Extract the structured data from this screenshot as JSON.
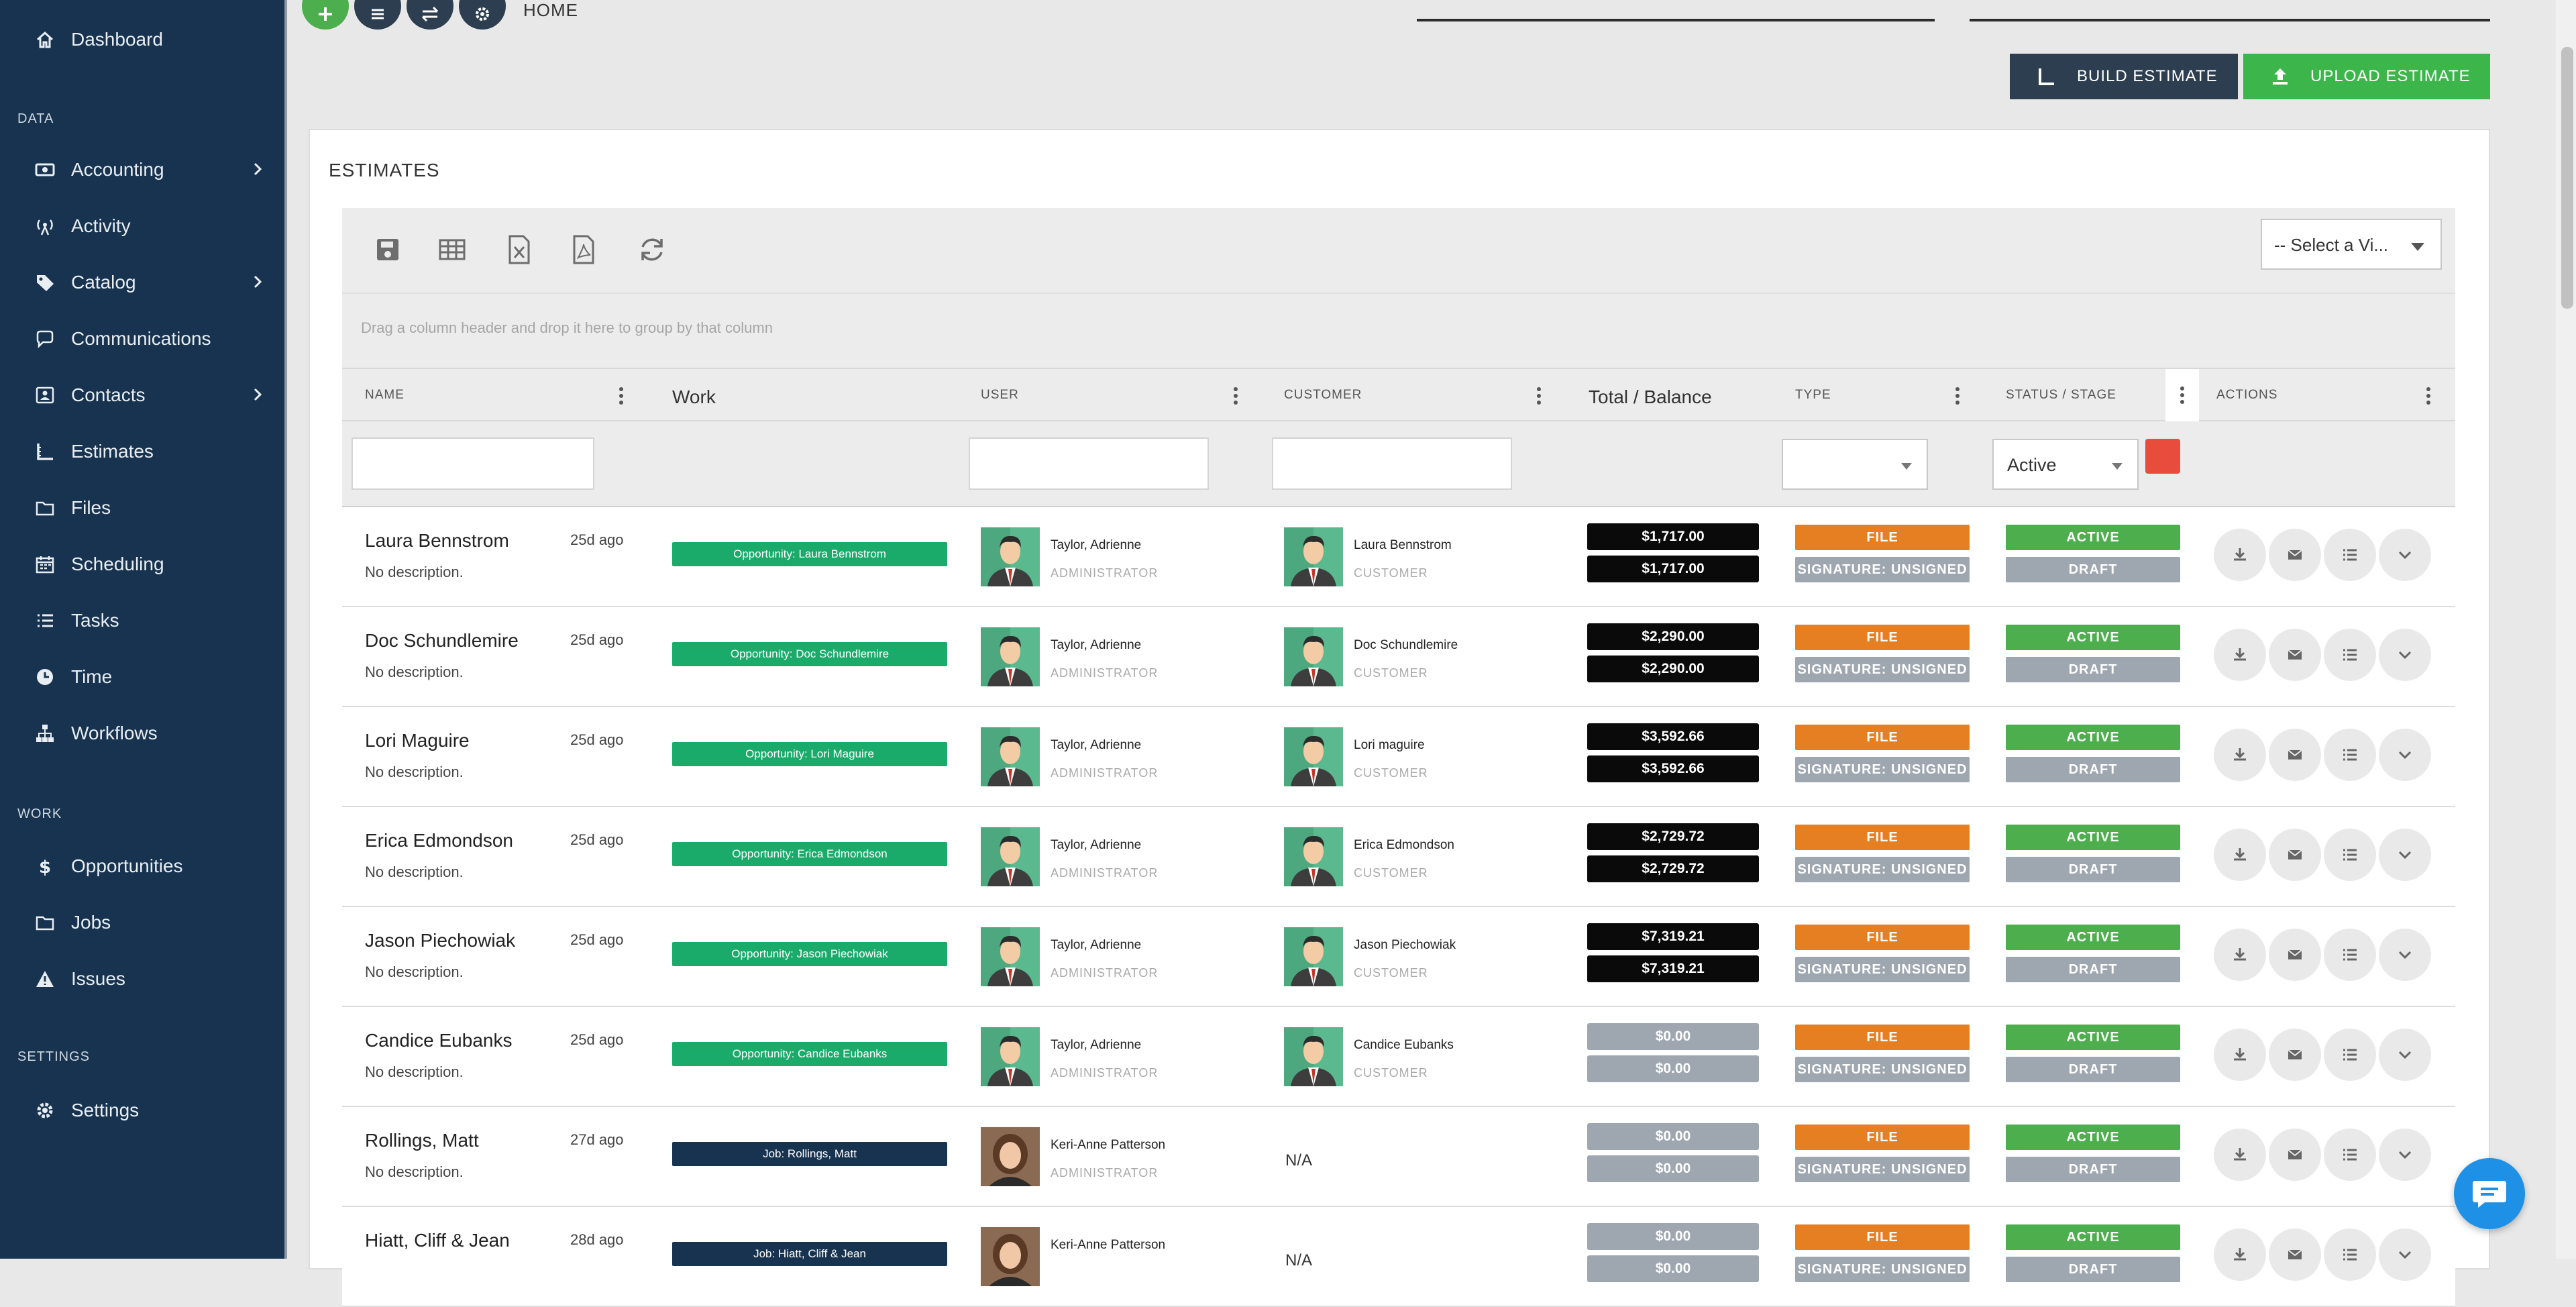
{
  "sidebar": {
    "top": {
      "label": "Dashboard"
    },
    "sections": {
      "data": "DATA",
      "work": "WORK",
      "settings": "SETTINGS"
    },
    "data_items": [
      {
        "label": "Accounting",
        "icon": "money-icon",
        "has_children": true
      },
      {
        "label": "Activity",
        "icon": "broadcast-icon",
        "has_children": false
      },
      {
        "label": "Catalog",
        "icon": "tag-icon",
        "has_children": true
      },
      {
        "label": "Communications",
        "icon": "chat-icon",
        "has_children": false
      },
      {
        "label": "Contacts",
        "icon": "contact-card-icon",
        "has_children": true
      },
      {
        "label": "Estimates",
        "icon": "ruler-icon",
        "has_children": false
      },
      {
        "label": "Files",
        "icon": "folder-icon",
        "has_children": false
      },
      {
        "label": "Scheduling",
        "icon": "calendar-icon",
        "has_children": false
      },
      {
        "label": "Tasks",
        "icon": "list-icon",
        "has_children": false
      },
      {
        "label": "Time",
        "icon": "clock-icon",
        "has_children": false
      },
      {
        "label": "Workflows",
        "icon": "sitemap-icon",
        "has_children": false
      }
    ],
    "work_items": [
      {
        "label": "Opportunities",
        "icon": "dollar-icon"
      },
      {
        "label": "Jobs",
        "icon": "folder-icon"
      },
      {
        "label": "Issues",
        "icon": "warning-icon"
      }
    ],
    "settings_items": [
      {
        "label": "Settings",
        "icon": "gear-icon"
      }
    ]
  },
  "topbar": {
    "title": "HOME",
    "buttons": [
      "add-icon",
      "menu-icon",
      "swap-icon",
      "gear-icon"
    ]
  },
  "actions": {
    "build": "BUILD ESTIMATE",
    "upload": "UPLOAD ESTIMATE"
  },
  "panel": {
    "title": "ESTIMATES",
    "view_select": "-- Select a Vi...",
    "group_hint": "Drag a column header and drop it here to group by that column",
    "columns": {
      "name": "NAME",
      "work": "Work",
      "user": "USER",
      "customer": "CUSTOMER",
      "total": "Total / Balance",
      "type": "TYPE",
      "status": "STATUS / STAGE",
      "actions": "ACTIONS"
    },
    "status_filter": "Active"
  },
  "colors": {
    "sidebar": "#17334f",
    "opportunity": "#1aab6b",
    "job": "#17334f",
    "file": "#e67e22",
    "active": "#4cae4c",
    "muted": "#9ea6b0",
    "upload": "#3cb64a"
  },
  "rows": [
    {
      "name": "Laura Bennstrom",
      "desc": "No description.",
      "ago": "25d ago",
      "work": "Opportunity: Laura Bennstrom",
      "work_kind": "opp",
      "user": "Taylor, Adrienne",
      "user_role": "ADMINISTRATOR",
      "user_avatar": "male",
      "customer": "Laura Bennstrom",
      "customer_role": "CUSTOMER",
      "total": "$1,717.00",
      "balance": "$1,717.00",
      "amt_style": "dark",
      "type": "FILE",
      "signature": "SIGNATURE: UNSIGNED",
      "status": "ACTIVE",
      "stage": "DRAFT"
    },
    {
      "name": "Doc Schundlemire",
      "desc": "No description.",
      "ago": "25d ago",
      "work": "Opportunity: Doc Schundlemire",
      "work_kind": "opp",
      "user": "Taylor, Adrienne",
      "user_role": "ADMINISTRATOR",
      "user_avatar": "male",
      "customer": "Doc Schundlemire",
      "customer_role": "CUSTOMER",
      "total": "$2,290.00",
      "balance": "$2,290.00",
      "amt_style": "dark",
      "type": "FILE",
      "signature": "SIGNATURE: UNSIGNED",
      "status": "ACTIVE",
      "stage": "DRAFT"
    },
    {
      "name": "Lori Maguire",
      "desc": "No description.",
      "ago": "25d ago",
      "work": "Opportunity: Lori Maguire",
      "work_kind": "opp",
      "user": "Taylor, Adrienne",
      "user_role": "ADMINISTRATOR",
      "user_avatar": "male",
      "customer": "Lori maguire",
      "customer_role": "CUSTOMER",
      "total": "$3,592.66",
      "balance": "$3,592.66",
      "amt_style": "dark",
      "type": "FILE",
      "signature": "SIGNATURE: UNSIGNED",
      "status": "ACTIVE",
      "stage": "DRAFT"
    },
    {
      "name": "Erica Edmondson",
      "desc": "No description.",
      "ago": "25d ago",
      "work": "Opportunity: Erica Edmondson",
      "work_kind": "opp",
      "user": "Taylor, Adrienne",
      "user_role": "ADMINISTRATOR",
      "user_avatar": "male",
      "customer": "Erica Edmondson",
      "customer_role": "CUSTOMER",
      "total": "$2,729.72",
      "balance": "$2,729.72",
      "amt_style": "dark",
      "type": "FILE",
      "signature": "SIGNATURE: UNSIGNED",
      "status": "ACTIVE",
      "stage": "DRAFT"
    },
    {
      "name": "Jason Piechowiak",
      "desc": "No description.",
      "ago": "25d ago",
      "work": "Opportunity: Jason Piechowiak",
      "work_kind": "opp",
      "user": "Taylor, Adrienne",
      "user_role": "ADMINISTRATOR",
      "user_avatar": "male",
      "customer": "Jason Piechowiak",
      "customer_role": "CUSTOMER",
      "total": "$7,319.21",
      "balance": "$7,319.21",
      "amt_style": "dark",
      "type": "FILE",
      "signature": "SIGNATURE: UNSIGNED",
      "status": "ACTIVE",
      "stage": "DRAFT"
    },
    {
      "name": "Candice Eubanks",
      "desc": "No description.",
      "ago": "25d ago",
      "work": "Opportunity: Candice Eubanks",
      "work_kind": "opp",
      "user": "Taylor, Adrienne",
      "user_role": "ADMINISTRATOR",
      "user_avatar": "male",
      "customer": "Candice Eubanks",
      "customer_role": "CUSTOMER",
      "total": "$0.00",
      "balance": "$0.00",
      "amt_style": "grey",
      "type": "FILE",
      "signature": "SIGNATURE: UNSIGNED",
      "status": "ACTIVE",
      "stage": "DRAFT"
    },
    {
      "name": "Rollings, Matt",
      "desc": "No description.",
      "ago": "27d ago",
      "work": "Job: Rollings, Matt",
      "work_kind": "job",
      "user": "Keri-Anne Patterson",
      "user_role": "ADMINISTRATOR",
      "user_avatar": "female",
      "customer": "N/A",
      "customer_role": "",
      "total": "$0.00",
      "balance": "$0.00",
      "amt_style": "grey",
      "type": "FILE",
      "signature": "SIGNATURE: UNSIGNED",
      "status": "ACTIVE",
      "stage": "DRAFT"
    },
    {
      "name": "Hiatt, Cliff & Jean",
      "desc": "",
      "ago": "28d ago",
      "work": "Job: Hiatt, Cliff & Jean",
      "work_kind": "job",
      "user": "Keri-Anne Patterson",
      "user_role": "",
      "user_avatar": "female",
      "customer": "N/A",
      "customer_role": "",
      "total": "$0.00",
      "balance": "$0.00",
      "amt_style": "grey",
      "type": "FILE",
      "signature": "SIGNATURE: UNSIGNED",
      "status": "ACTIVE",
      "stage": "DRAFT"
    }
  ]
}
